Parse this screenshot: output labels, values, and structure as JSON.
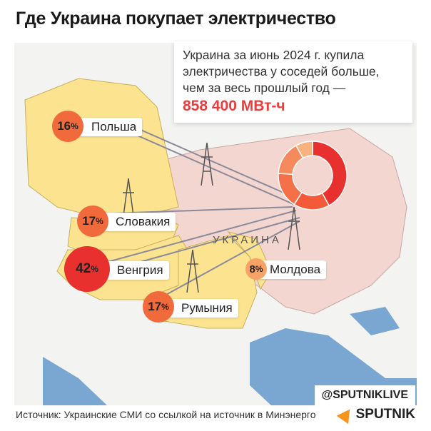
{
  "title": "Где Украина покупает электричество",
  "callout": {
    "text": "Украина за июнь 2024 г. купила электричества у соседей больше, чем за весь прошлый год —",
    "value": "858 400 МВт-ч"
  },
  "ukraine_label": "УКРАИНА",
  "countries": [
    {
      "name": "Польша",
      "pct": "16",
      "share": 16
    },
    {
      "name": "Словакия",
      "pct": "17",
      "share": 17
    },
    {
      "name": "Венгрия",
      "pct": "42",
      "share": 42
    },
    {
      "name": "Румыния",
      "pct": "17",
      "share": 17
    },
    {
      "name": "Молдова",
      "pct": "8",
      "share": 8
    }
  ],
  "pct_sign": "%",
  "colors": {
    "hungary": "#e8312f",
    "others": "#f06a3c",
    "moldova": "#f7a266",
    "neighbors": "#fbe38f",
    "ukraine": "#f3d6d0",
    "water": "#7aa7d2",
    "accent": "#ec3c3c"
  },
  "handle": "@SPUTNIKLIVE",
  "source": "Источник: Украинские СМИ со ссылкой на источник в Минэнерго",
  "brand": "SPUTNIK"
}
